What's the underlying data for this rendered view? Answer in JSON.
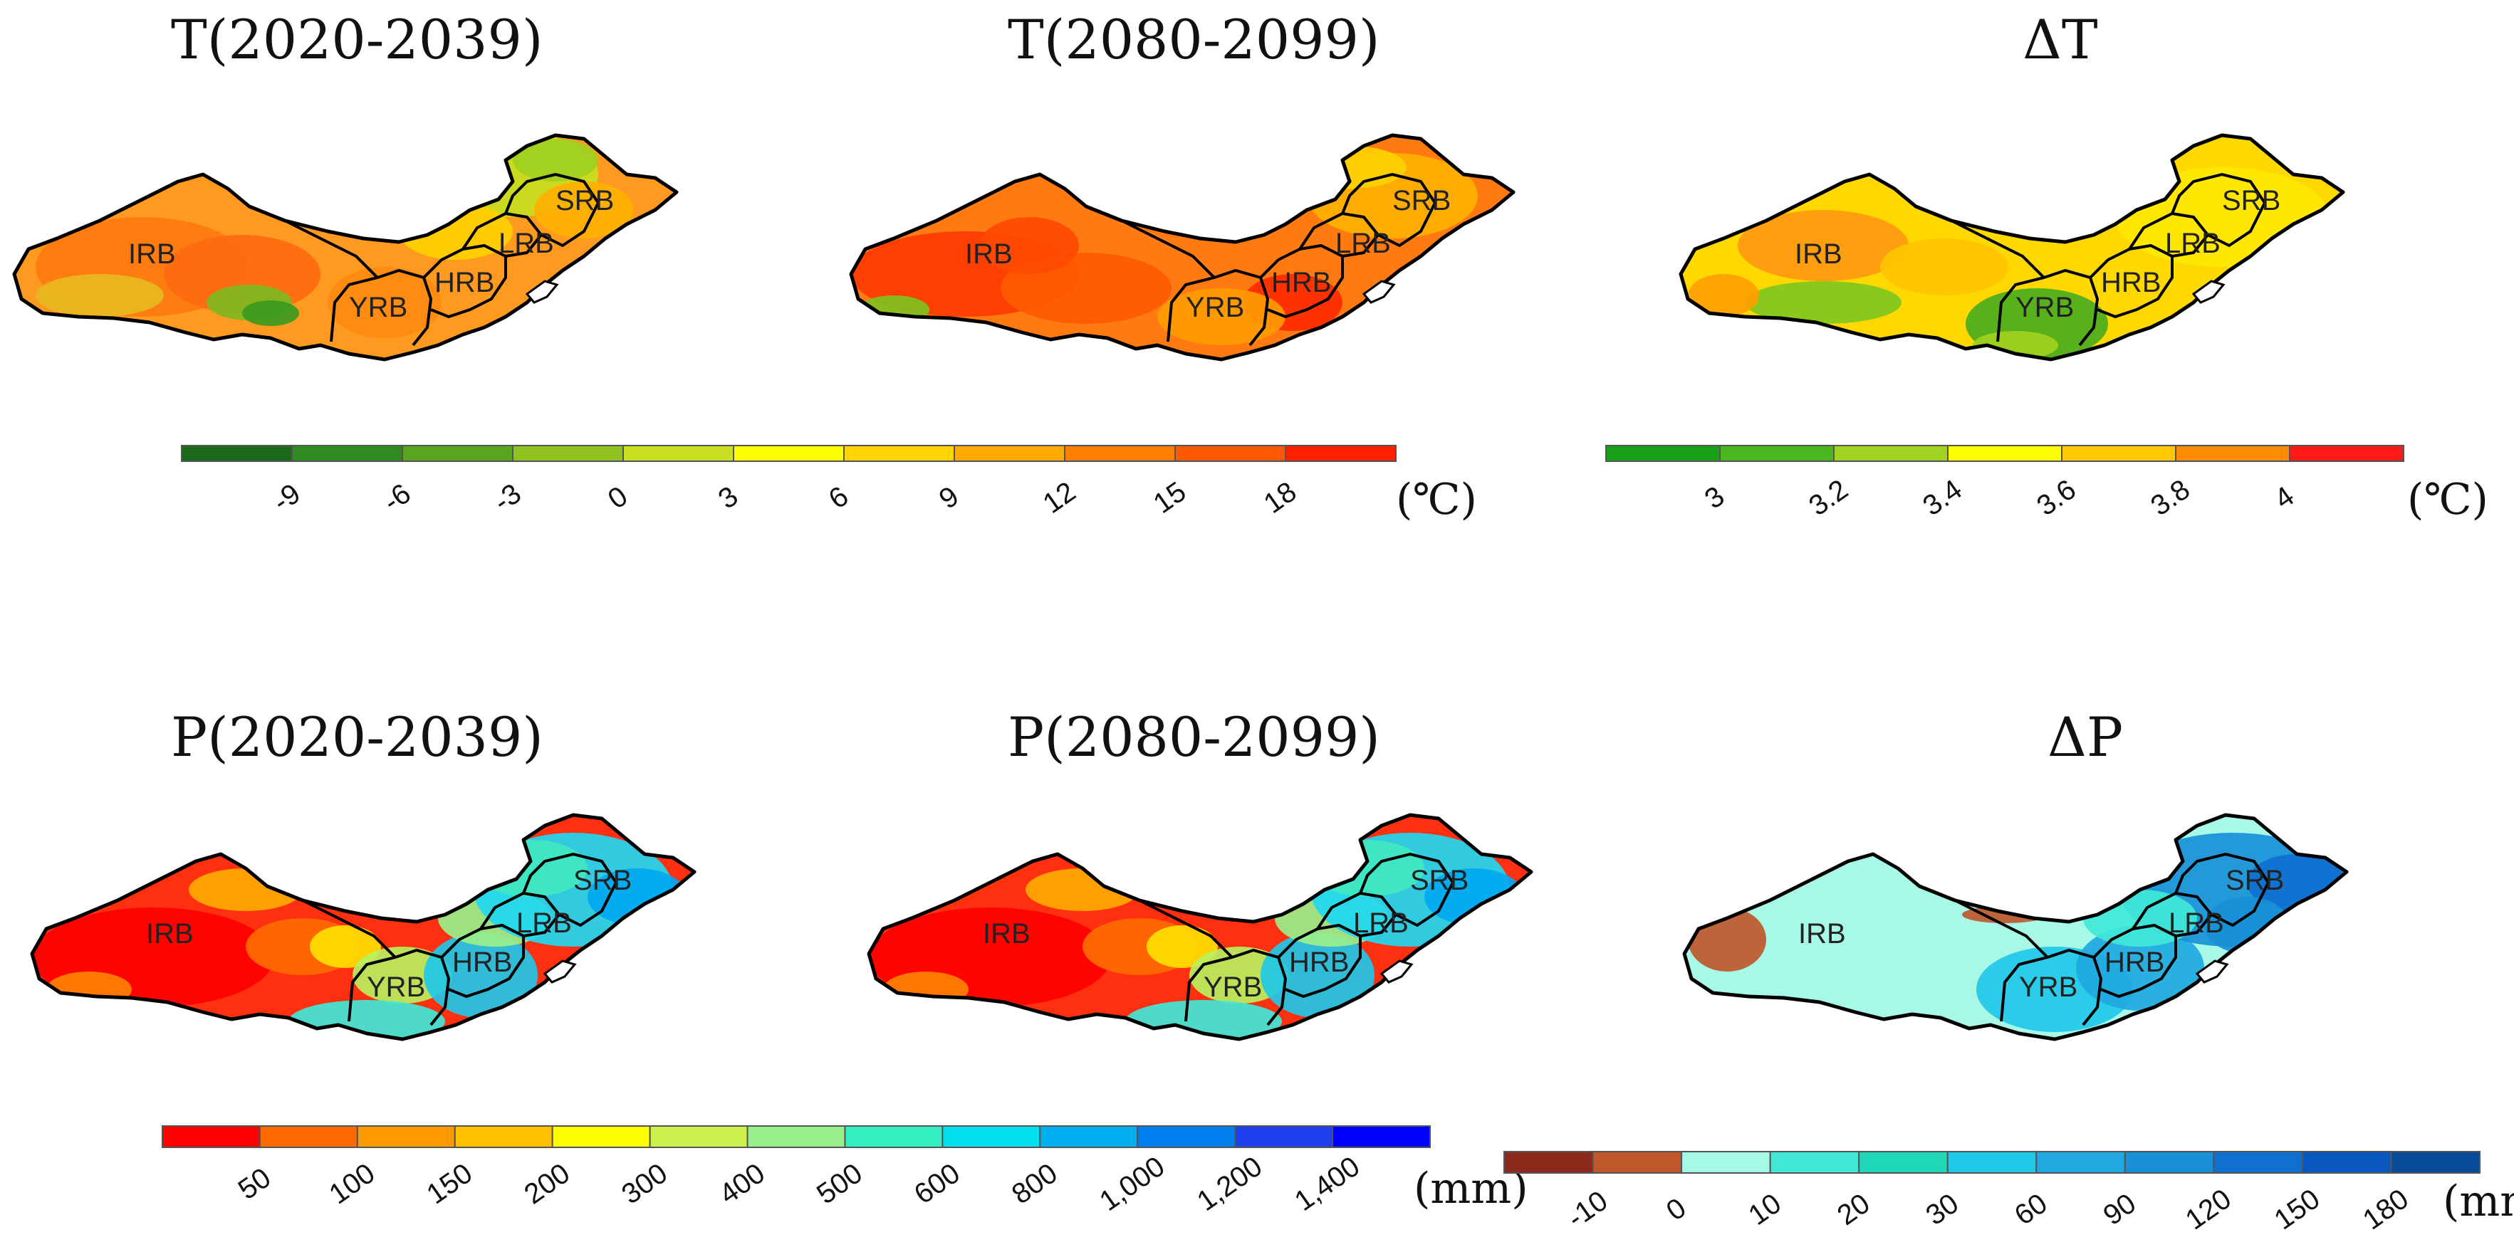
{
  "panels": [
    {
      "id": "t2020",
      "title": "T(2020-2039)",
      "palette": "temp",
      "mean": "orange",
      "regions": [
        "IRB",
        "YRB",
        "HRB",
        "LRB",
        "SRB"
      ]
    },
    {
      "id": "t2080",
      "title": "T(2080-2099)",
      "palette": "temp",
      "mean": "hot",
      "regions": [
        "IRB",
        "YRB",
        "HRB",
        "LRB",
        "SRB"
      ]
    },
    {
      "id": "dT",
      "title": "ΔT",
      "palette": "dtemp",
      "mean": "yellow",
      "regions": [
        "IRB",
        "YRB",
        "HRB",
        "LRB",
        "SRB"
      ]
    },
    {
      "id": "p2020",
      "title": "P(2020-2039)",
      "palette": "prec",
      "mean": "dry",
      "regions": [
        "IRB",
        "YRB",
        "HRB",
        "LRB",
        "SRB"
      ]
    },
    {
      "id": "p2080",
      "title": "P(2080-2099)",
      "palette": "prec",
      "mean": "dry",
      "regions": [
        "IRB",
        "YRB",
        "HRB",
        "LRB",
        "SRB"
      ]
    },
    {
      "id": "dP",
      "title": "ΔP",
      "palette": "dprec",
      "mean": "wet",
      "regions": [
        "IRB",
        "YRB",
        "HRB",
        "LRB",
        "SRB"
      ]
    }
  ],
  "legends": {
    "temp": {
      "colors": [
        "#1b6a1b",
        "#2f8a1f",
        "#5aa520",
        "#8fc21f",
        "#c9e022",
        "#ffff00",
        "#ffd400",
        "#ffaa00",
        "#ff8000",
        "#ff5a00",
        "#ff2000"
      ],
      "ticks": [
        "-9",
        "-6",
        "-3",
        "0",
        "3",
        "6",
        "9",
        "12",
        "15",
        "18"
      ],
      "unit": "(℃)"
    },
    "dtemp": {
      "colors": [
        "#19a019",
        "#4ab71e",
        "#9fd31f",
        "#ffff00",
        "#ffc800",
        "#ff8c00",
        "#ff1a1a"
      ],
      "ticks": [
        "3",
        "3.2",
        "3.4",
        "3.6",
        "3.8",
        "4"
      ],
      "unit": "(℃)"
    },
    "prec": {
      "colors": [
        "#ff0000",
        "#ff6a00",
        "#ff9a00",
        "#ffc000",
        "#ffff00",
        "#ccf04c",
        "#99f08a",
        "#33f0c0",
        "#00e0f0",
        "#00b0f0",
        "#0080f0",
        "#2040f0",
        "#0000ff"
      ],
      "ticks": [
        "50",
        "100",
        "150",
        "200",
        "300",
        "400",
        "500",
        "600",
        "800",
        "1,000",
        "1,200",
        "1,400"
      ],
      "unit": "(mm)"
    },
    "dprec": {
      "colors": [
        "#8b2a1a",
        "#c0572a",
        "#a8f8e8",
        "#40e8d8",
        "#20d8b8",
        "#20c8e8",
        "#20a8e0",
        "#1890d8",
        "#1070d0",
        "#0858c0",
        "#0a4a9a"
      ],
      "ticks": [
        "-10",
        "0",
        "10",
        "20",
        "30",
        "60",
        "90",
        "120",
        "150",
        "180"
      ],
      "unit": "(mm)"
    }
  }
}
